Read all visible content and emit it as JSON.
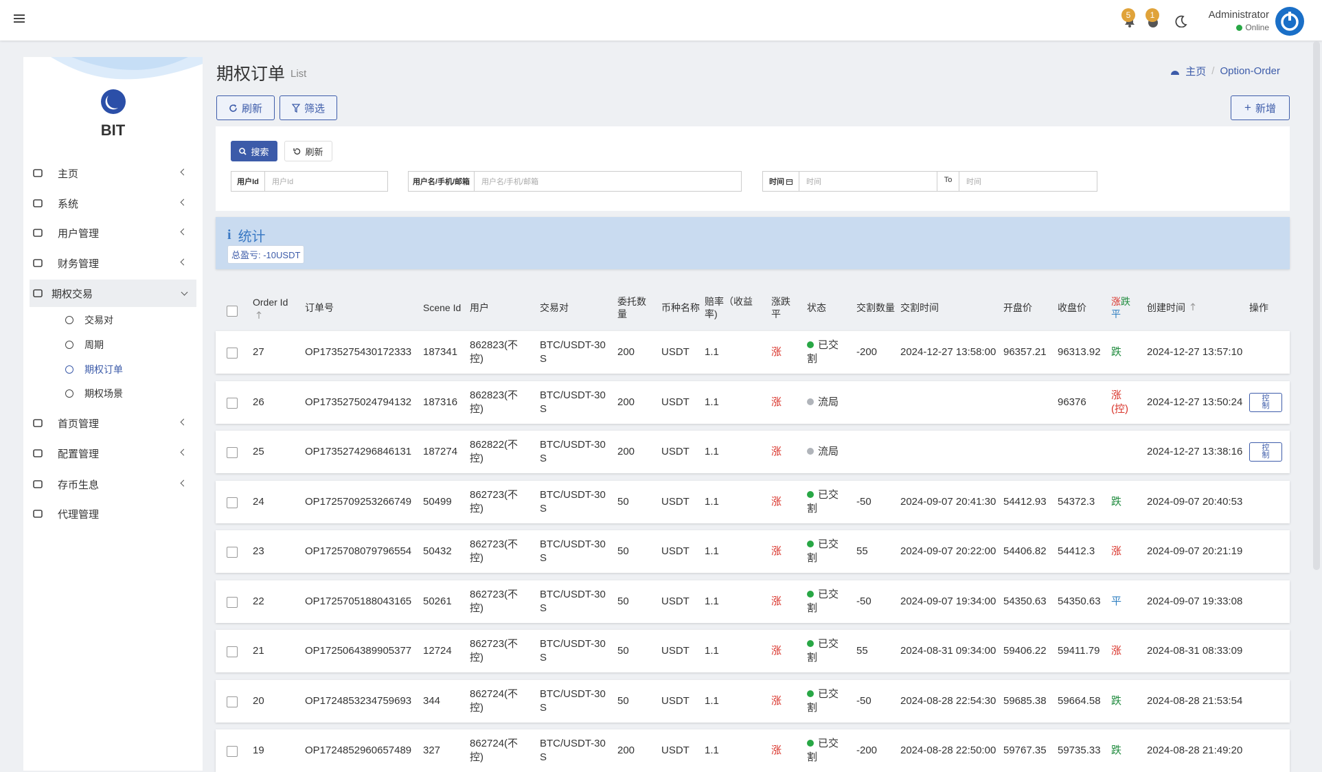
{
  "header": {
    "badges": [
      "5",
      "1"
    ],
    "user": "Administrator",
    "status": "Online"
  },
  "sidebar": {
    "logo": "BIT",
    "menu": [
      {
        "label": "主页"
      },
      {
        "label": "系统"
      },
      {
        "label": "用户管理"
      },
      {
        "label": "财务管理"
      },
      {
        "label": "期权交易",
        "children": [
          "交易对",
          "周期",
          "期权订单",
          "期权场景"
        ]
      },
      {
        "label": "首页管理"
      },
      {
        "label": "配置管理"
      },
      {
        "label": "存币生息"
      },
      {
        "label": "代理管理"
      }
    ]
  },
  "page": {
    "title": "期权订单",
    "subtitle": "List",
    "breadcrumb": [
      "主页",
      "Option-Order"
    ]
  },
  "toolbar": {
    "refresh": "刷新",
    "filter": "筛选",
    "add": "新增"
  },
  "search": {
    "search": "搜索",
    "reset": "刷新",
    "fields": [
      {
        "label": "用户Id",
        "placeholder": "用户Id"
      },
      {
        "label": "用户名/手机/邮箱",
        "placeholder": "用户名/手机/邮箱"
      },
      {
        "label": "时间",
        "placeholder": "时间",
        "to": "To",
        "placeholder2": "时间"
      }
    ]
  },
  "stats": {
    "title": "统计",
    "total": "总盈亏: -10USDT"
  },
  "table": {
    "columns": [
      "Order Id",
      "订单号",
      "Scene Id",
      "用户",
      "交易对",
      "委托数量",
      "币种名称",
      "赔率（收益率)",
      "涨跌平",
      "状态",
      "交割数量",
      "交割时间",
      "开盘价",
      "收盘价",
      [
        {
          "text": "涨",
          "color": "#d9342b"
        },
        {
          "text": "跌",
          "color": "#1e8a3c"
        },
        {
          "text": "平",
          "color": "#2f7fc1"
        }
      ],
      "创建时间",
      "操作"
    ],
    "rows": [
      {
        "id": 27,
        "order_no": "OP1735275430172333",
        "scene_id": 187341,
        "user": "862823(不控)",
        "pair": "BTC/USDT-30S",
        "amount": 200,
        "coin": "USDT",
        "rate": 1.1,
        "direction": "涨",
        "direction_color": "#d9342b",
        "status": "已交割",
        "status_color": "#28a745",
        "delivery_amount": -200,
        "delivery_time": "2024-12-27 13:58:00",
        "open_price": 96357.21,
        "close_price": 96313.92,
        "result": "跌",
        "result_color": "#1e8a3c",
        "created_at": "2024-12-27 13:57:10"
      },
      {
        "id": 26,
        "order_no": "OP1735275024794132",
        "scene_id": 187316,
        "user": "862823(不控)",
        "pair": "BTC/USDT-30S",
        "amount": 200,
        "coin": "USDT",
        "rate": 1.1,
        "direction": "涨",
        "direction_color": "#d9342b",
        "status": "流局",
        "status_color": "#b0b4ba",
        "close_price": 96376,
        "result": "涨(控)",
        "result_color": "#d9342b",
        "created_at": "2024-12-27 13:50:24",
        "action": "控制"
      },
      {
        "id": 25,
        "order_no": "OP1735274296846131",
        "scene_id": 187274,
        "user": "862822(不控)",
        "pair": "BTC/USDT-30S",
        "amount": 200,
        "coin": "USDT",
        "rate": 1.1,
        "direction": "涨",
        "direction_color": "#d9342b",
        "status": "流局",
        "status_color": "#b0b4ba",
        "created_at": "2024-12-27 13:38:16",
        "action": "控制"
      },
      {
        "id": 24,
        "order_no": "OP1725709253266749",
        "scene_id": 50499,
        "user": "862723(不控)",
        "pair": "BTC/USDT-30S",
        "amount": 50,
        "coin": "USDT",
        "rate": 1.1,
        "direction": "涨",
        "direction_color": "#d9342b",
        "status": "已交割",
        "status_color": "#28a745",
        "delivery_amount": -50,
        "delivery_time": "2024-09-07 20:41:30",
        "open_price": 54412.93,
        "close_price": 54372.3,
        "result": "跌",
        "result_color": "#1e8a3c",
        "created_at": "2024-09-07 20:40:53"
      },
      {
        "id": 23,
        "order_no": "OP1725708079796554",
        "scene_id": 50432,
        "user": "862723(不控)",
        "pair": "BTC/USDT-30S",
        "amount": 50,
        "coin": "USDT",
        "rate": 1.1,
        "direction": "涨",
        "direction_color": "#d9342b",
        "status": "已交割",
        "status_color": "#28a745",
        "delivery_amount": 55,
        "delivery_time": "2024-09-07 20:22:00",
        "open_price": 54406.82,
        "close_price": 54412.3,
        "result": "涨",
        "result_color": "#d9342b",
        "created_at": "2024-09-07 20:21:19"
      },
      {
        "id": 22,
        "order_no": "OP1725705188043165",
        "scene_id": 50261,
        "user": "862723(不控)",
        "pair": "BTC/USDT-30S",
        "amount": 50,
        "coin": "USDT",
        "rate": 1.1,
        "direction": "涨",
        "direction_color": "#d9342b",
        "status": "已交割",
        "status_color": "#28a745",
        "delivery_amount": -50,
        "delivery_time": "2024-09-07 19:34:00",
        "open_price": 54350.63,
        "close_price": 54350.63,
        "result": "平",
        "result_color": "#2f7fc1",
        "created_at": "2024-09-07 19:33:08"
      },
      {
        "id": 21,
        "order_no": "OP1725064389905377",
        "scene_id": 12724,
        "user": "862723(不控)",
        "pair": "BTC/USDT-30S",
        "amount": 50,
        "coin": "USDT",
        "rate": 1.1,
        "direction": "涨",
        "direction_color": "#d9342b",
        "status": "已交割",
        "status_color": "#28a745",
        "delivery_amount": 55,
        "delivery_time": "2024-08-31 09:34:00",
        "open_price": 59406.22,
        "close_price": 59411.79,
        "result": "涨",
        "result_color": "#d9342b",
        "created_at": "2024-08-31 08:33:09"
      },
      {
        "id": 20,
        "order_no": "OP1724853234759693",
        "scene_id": 344,
        "user": "862724(不控)",
        "pair": "BTC/USDT-30S",
        "amount": 50,
        "coin": "USDT",
        "rate": 1.1,
        "direction": "涨",
        "direction_color": "#d9342b",
        "status": "已交割",
        "status_color": "#28a745",
        "delivery_amount": -50,
        "delivery_time": "2024-08-28 22:54:30",
        "open_price": 59685.38,
        "close_price": 59664.58,
        "result": "跌",
        "result_color": "#1e8a3c",
        "created_at": "2024-08-28 21:53:54"
      },
      {
        "id": 19,
        "order_no": "OP1724852960657489",
        "scene_id": 327,
        "user": "862724(不控)",
        "pair": "BTC/USDT-30S",
        "amount": 200,
        "coin": "USDT",
        "rate": 1.1,
        "direction": "涨",
        "direction_color": "#d9342b",
        "status": "已交割",
        "status_color": "#28a745",
        "delivery_amount": -200,
        "delivery_time": "2024-08-28 22:50:00",
        "open_price": 59767.35,
        "close_price": 59735.33,
        "result": "跌",
        "result_color": "#1e8a3c",
        "created_at": "2024-08-28 21:49:20"
      }
    ]
  }
}
